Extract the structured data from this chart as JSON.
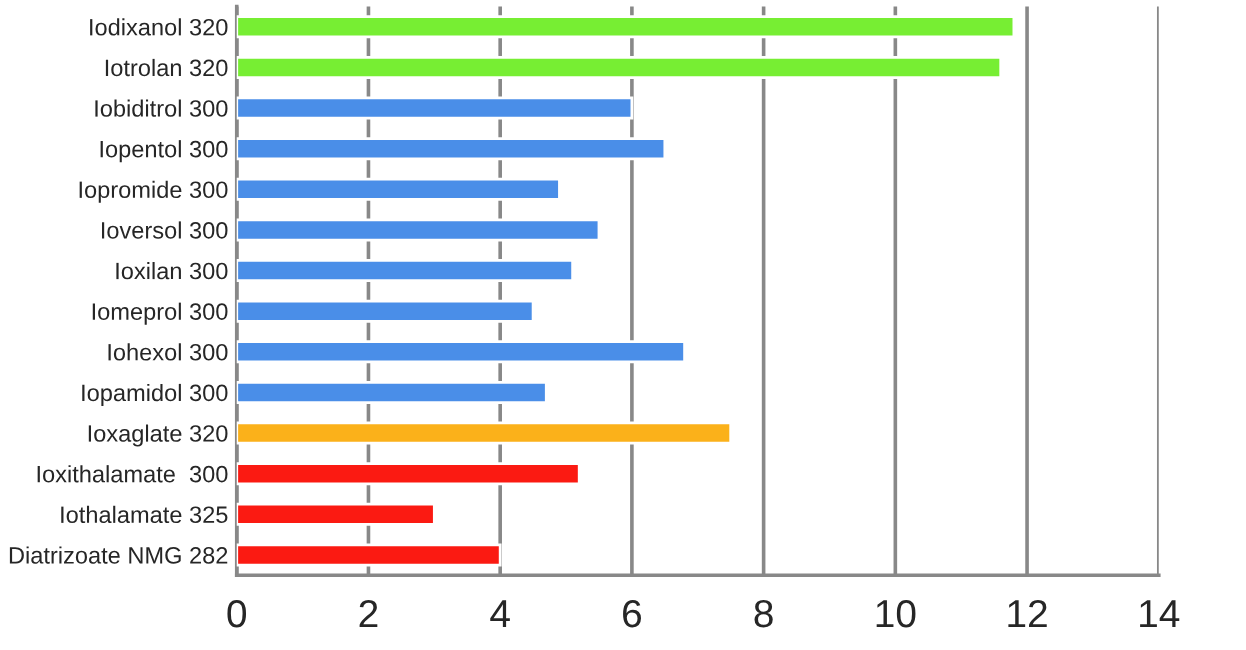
{
  "chart_data": {
    "type": "bar",
    "orientation": "horizontal",
    "categories": [
      "Iodixanol 320",
      "Iotrolan 320",
      "Iobiditrol 300",
      "Iopentol 300",
      "Iopromide 300",
      "Ioversol 300",
      "Ioxilan 300",
      "Iomeprol 300",
      "Iohexol 300",
      "Iopamidol 300",
      "Ioxaglate 320",
      "Ioxithalamate  300",
      "Iothalamate 325",
      "Diatrizoate NMG 282"
    ],
    "values": [
      11.8,
      11.6,
      6.0,
      6.5,
      4.9,
      5.5,
      5.1,
      4.5,
      6.8,
      4.7,
      7.5,
      5.2,
      3.0,
      4.0
    ],
    "colors": [
      "#77ee33",
      "#77ee33",
      "#4a8ee8",
      "#4a8ee8",
      "#4a8ee8",
      "#4a8ee8",
      "#4a8ee8",
      "#4a8ee8",
      "#4a8ee8",
      "#4a8ee8",
      "#fbb11a",
      "#fb1a12",
      "#fb1a12",
      "#fb1a12"
    ],
    "xlim": [
      0,
      14
    ],
    "xticks": [
      0,
      2,
      4,
      6,
      8,
      10,
      12,
      14
    ],
    "grid": "x"
  }
}
